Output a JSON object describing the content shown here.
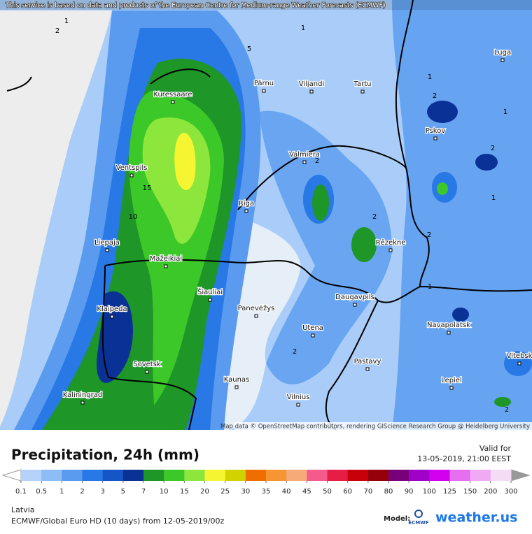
{
  "header": {
    "attribution": "This service is based on data and products of the European Centre for Medium-range Weather Forecasts (ECMWF)"
  },
  "map": {
    "cities": [
      "Kuressaare",
      "Pärnu",
      "Viljandi",
      "Tartu",
      "Luga",
      "Pskov",
      "Valmiera",
      "Ventspils",
      "Riga",
      "Liepaja",
      "Rēzekne",
      "Mažeikiai",
      "Šiauliai",
      "Klaipeda",
      "Panevėžys",
      "Daugavpils",
      "Navapolatsk",
      "Utena",
      "Vitebsk",
      "Sovetsk",
      "Pastavy",
      "Kaunas",
      "Lepiel",
      "Kaliningrad",
      "Vilnius"
    ],
    "contour_labels": [
      1,
      2,
      1,
      5,
      15,
      10,
      1,
      2,
      1,
      2,
      1,
      2,
      1,
      2,
      2,
      2,
      2
    ],
    "credit": "Map data © OpenStreetMap contributors, rendering GIScience Research Group @ Heidelberg University"
  },
  "footer": {
    "title": "Precipitation, 24h (mm)",
    "valid_label": "Valid for",
    "valid_time": "13-05-2019, 21:00 EEST",
    "region": "Latvia",
    "model_run": "ECMWF/Global Euro HD (10 days) from 12-05-2019/00z",
    "model_label": "Model:",
    "model_logo": "ECMWF",
    "brand": "weather.us"
  },
  "legend": {
    "ticks": [
      0.1,
      0.5,
      1,
      2,
      3,
      5,
      7,
      10,
      15,
      20,
      25,
      30,
      35,
      40,
      45,
      50,
      60,
      70,
      80,
      90,
      100,
      125,
      150,
      200,
      300
    ],
    "colors": [
      "#b4d2fa",
      "#8cbef5",
      "#5a9bf0",
      "#2878e6",
      "#1455c8",
      "#0a3296",
      "#1e9628",
      "#3cc828",
      "#8ce63c",
      "#f5f532",
      "#d2d200",
      "#f06e00",
      "#f59632",
      "#f5aa78",
      "#f55a8c",
      "#e61e46",
      "#c8000a",
      "#96000a",
      "#780078",
      "#a000c8",
      "#d200f0",
      "#e66ef0",
      "#f0aaf5",
      "#f5dcf5"
    ]
  }
}
